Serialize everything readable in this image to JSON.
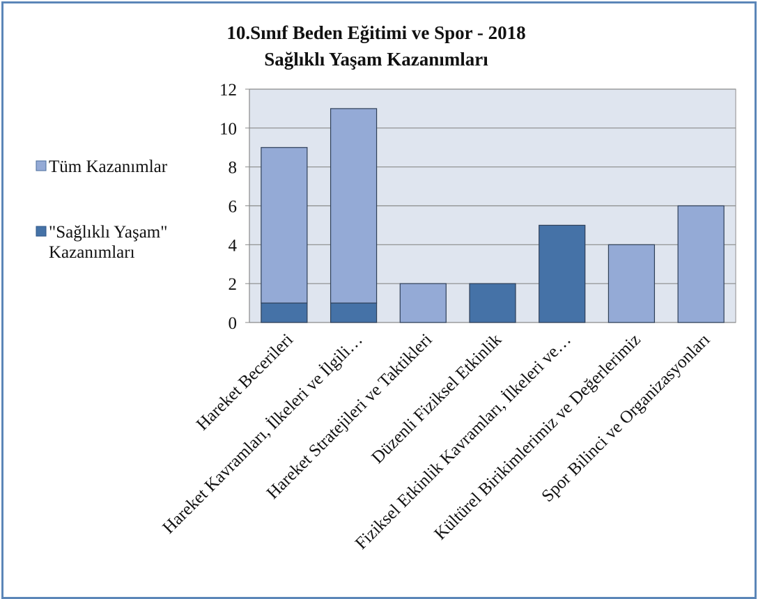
{
  "chart_data": {
    "type": "bar",
    "stacked": true,
    "title": "10.Sınıf Beden Eğitimi ve Spor - 2018",
    "subtitle": "Sağlıklı Yaşam Kazanımları",
    "categories": [
      "Hareket Becerileri",
      "Hareket Kavramları, İlkeleri ve İlgili…",
      "Hareket Stratejileri ve Taktikleri",
      "Düzenli Fiziksel Etkinlik",
      "Fiziksel Etkinlik Kavramları, İlkeleri ve…",
      "Kültürel Birikimlerimiz ve Değerlerimiz",
      "Spor Bilinci ve Organizasyonları"
    ],
    "series": [
      {
        "name": "Tüm Kazanımlar",
        "values": [
          9,
          11,
          2,
          2,
          5,
          4,
          6
        ],
        "color": "#94aad6"
      },
      {
        "name": "\"Sağlıklı Yaşam\" Kazanımları",
        "values": [
          1,
          1,
          0,
          2,
          5,
          0,
          0
        ],
        "color": "#4572a7"
      }
    ],
    "ylim": [
      0,
      12
    ],
    "yticks": [
      "0",
      "2",
      "4",
      "6",
      "8",
      "10",
      "12"
    ],
    "grid": true,
    "legend_position": "left",
    "plot_background": "#dfe5ef"
  }
}
